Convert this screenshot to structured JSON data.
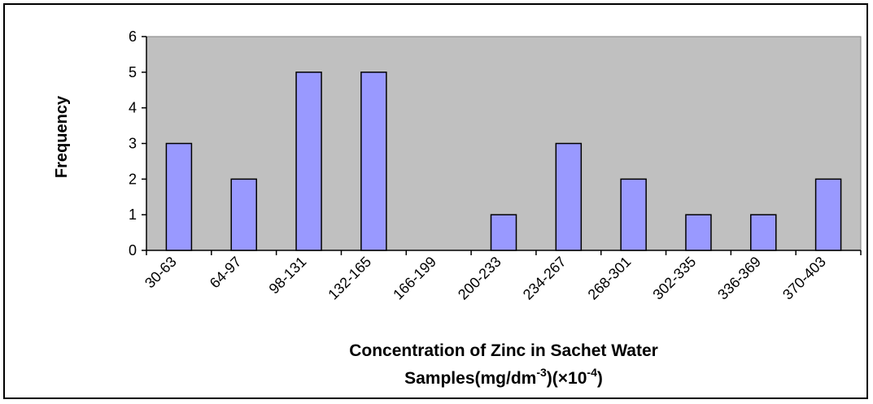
{
  "chart_data": {
    "type": "bar",
    "categories": [
      "30-63",
      "64-97",
      "98-131",
      "132-165",
      "166-199",
      "200-233",
      "234-267",
      "268-301",
      "302-335",
      "336-369",
      "370-403"
    ],
    "values": [
      3,
      2,
      5,
      5,
      0,
      1,
      3,
      2,
      1,
      1,
      2
    ],
    "ylabel": "Frequency",
    "xlabel_line1": "Concentration of Zinc in Sachet Water",
    "xlabel_line2_prefix": "Samples(mg/dm",
    "xlabel_line2_sup1": "-3",
    "xlabel_line2_mid": ")(×10",
    "xlabel_line2_sup2": "-4",
    "xlabel_line2_suffix": ")",
    "ylim": [
      0,
      6
    ],
    "yticks": [
      0,
      1,
      2,
      3,
      4,
      5,
      6
    ],
    "grid": false,
    "legend": "none",
    "colors": {
      "plot_background": "#c0c0c0",
      "bar_fill": "#9999ff",
      "bar_stroke": "#000000"
    }
  }
}
